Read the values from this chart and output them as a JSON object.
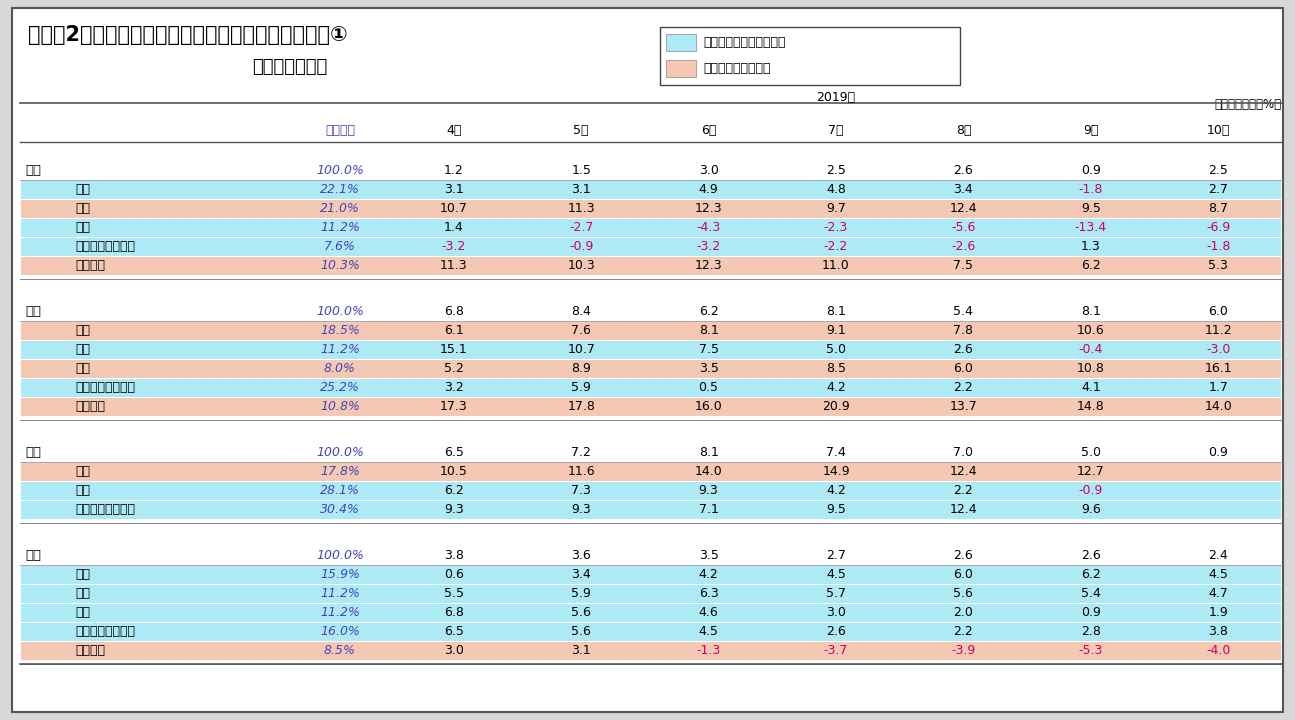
{
  "title": "（図表2）東アジア地域の鉱工業在庫・生産の推移　①",
  "subtitle": "－鉱工業在庫－",
  "note": "（前年同月比、%）",
  "legend": {
    "cyan_label": "在庫調整がほぼ終了局面",
    "pink_label": "在庫調整はこれから"
  },
  "header_year": "2019年",
  "columns": [
    "ウエート",
    "4月",
    "5月",
    "6月",
    "7月",
    "8月",
    "9月",
    "10月"
  ],
  "bg_color": "#d8d8d8",
  "table_bg": "#ffffff",
  "cyan_color": "#aeeaf5",
  "pink_color": "#f5c8b4",
  "sections": [
    {
      "name": "日本",
      "weight": "100.0%",
      "values": [
        "1.2",
        "1.5",
        "3.0",
        "2.5",
        "2.6",
        "0.9",
        "2.5"
      ],
      "neg": [
        false,
        false,
        false,
        false,
        false,
        false,
        false
      ],
      "rows": [
        {
          "name": "金属",
          "weight": "22.1%",
          "values": [
            "3.1",
            "3.1",
            "4.9",
            "4.8",
            "3.4",
            "-1.8",
            "2.7"
          ],
          "neg": [
            false,
            false,
            false,
            false,
            false,
            true,
            false
          ],
          "color": "cyan"
        },
        {
          "name": "化学",
          "weight": "21.0%",
          "values": [
            "10.7",
            "11.3",
            "12.3",
            "9.7",
            "12.4",
            "9.5",
            "8.7"
          ],
          "neg": [
            false,
            false,
            false,
            false,
            false,
            false,
            false
          ],
          "color": "pink"
        },
        {
          "name": "機械",
          "weight": "11.2%",
          "values": [
            "1.4",
            "-2.7",
            "-4.3",
            "-2.3",
            "-5.6",
            "-13.4",
            "-6.9"
          ],
          "neg": [
            false,
            true,
            true,
            true,
            true,
            true,
            true
          ],
          "color": "cyan"
        },
        {
          "name": "エレクトロニクス",
          "weight": "7.6%",
          "values": [
            "-3.2",
            "-0.9",
            "-3.2",
            "-2.2",
            "-2.6",
            "1.3",
            "-1.8"
          ],
          "neg": [
            true,
            true,
            true,
            true,
            true,
            false,
            true
          ],
          "color": "cyan"
        },
        {
          "name": "輸送機器",
          "weight": "10.3%",
          "values": [
            "11.3",
            "10.3",
            "12.3",
            "11.0",
            "7.5",
            "6.2",
            "5.3"
          ],
          "neg": [
            false,
            false,
            false,
            false,
            false,
            false,
            false
          ],
          "color": "pink"
        }
      ]
    },
    {
      "name": "韓国",
      "weight": "100.0%",
      "values": [
        "6.8",
        "8.4",
        "6.2",
        "8.1",
        "5.4",
        "8.1",
        "6.0"
      ],
      "neg": [
        false,
        false,
        false,
        false,
        false,
        false,
        false
      ],
      "rows": [
        {
          "name": "金属",
          "weight": "18.5%",
          "values": [
            "6.1",
            "7.6",
            "8.1",
            "9.1",
            "7.8",
            "10.6",
            "11.2"
          ],
          "neg": [
            false,
            false,
            false,
            false,
            false,
            false,
            false
          ],
          "color": "pink"
        },
        {
          "name": "化学",
          "weight": "11.2%",
          "values": [
            "15.1",
            "10.7",
            "7.5",
            "5.0",
            "2.6",
            "-0.4",
            "-3.0"
          ],
          "neg": [
            false,
            false,
            false,
            false,
            false,
            true,
            true
          ],
          "color": "cyan"
        },
        {
          "name": "機械",
          "weight": "8.0%",
          "values": [
            "5.2",
            "8.9",
            "3.5",
            "8.5",
            "6.0",
            "10.8",
            "16.1"
          ],
          "neg": [
            false,
            false,
            false,
            false,
            false,
            false,
            false
          ],
          "color": "pink"
        },
        {
          "name": "エレクトロニクス",
          "weight": "25.2%",
          "values": [
            "3.2",
            "5.9",
            "0.5",
            "4.2",
            "2.2",
            "4.1",
            "1.7"
          ],
          "neg": [
            false,
            false,
            false,
            false,
            false,
            false,
            false
          ],
          "color": "cyan"
        },
        {
          "name": "輸送機器",
          "weight": "10.8%",
          "values": [
            "17.3",
            "17.8",
            "16.0",
            "20.9",
            "13.7",
            "14.8",
            "14.0"
          ],
          "neg": [
            false,
            false,
            false,
            false,
            false,
            false,
            false
          ],
          "color": "pink"
        }
      ]
    },
    {
      "name": "台湾",
      "weight": "100.0%",
      "values": [
        "6.5",
        "7.2",
        "8.1",
        "7.4",
        "7.0",
        "5.0",
        "0.9"
      ],
      "neg": [
        false,
        false,
        false,
        false,
        false,
        false,
        false
      ],
      "rows": [
        {
          "name": "金属",
          "weight": "17.8%",
          "values": [
            "10.5",
            "11.6",
            "14.0",
            "14.9",
            "12.4",
            "12.7",
            ""
          ],
          "neg": [
            false,
            false,
            false,
            false,
            false,
            false,
            false
          ],
          "color": "pink"
        },
        {
          "name": "化学",
          "weight": "28.1%",
          "values": [
            "6.2",
            "7.3",
            "9.3",
            "4.2",
            "2.2",
            "-0.9",
            ""
          ],
          "neg": [
            false,
            false,
            false,
            false,
            false,
            true,
            false
          ],
          "color": "cyan"
        },
        {
          "name": "エレクトロニクス",
          "weight": "30.4%",
          "values": [
            "9.3",
            "9.3",
            "7.1",
            "9.5",
            "12.4",
            "9.6",
            ""
          ],
          "neg": [
            false,
            false,
            false,
            false,
            false,
            false,
            false
          ],
          "color": "cyan"
        }
      ]
    },
    {
      "name": "中国",
      "weight": "100.0%",
      "values": [
        "3.8",
        "3.6",
        "3.5",
        "2.7",
        "2.6",
        "2.6",
        "2.4"
      ],
      "neg": [
        false,
        false,
        false,
        false,
        false,
        false,
        false
      ],
      "rows": [
        {
          "name": "金属",
          "weight": "15.9%",
          "values": [
            "0.6",
            "3.4",
            "4.2",
            "4.5",
            "6.0",
            "6.2",
            "4.5"
          ],
          "neg": [
            false,
            false,
            false,
            false,
            false,
            false,
            false
          ],
          "color": "cyan"
        },
        {
          "name": "化学",
          "weight": "11.2%",
          "values": [
            "5.5",
            "5.9",
            "6.3",
            "5.7",
            "5.6",
            "5.4",
            "4.7"
          ],
          "neg": [
            false,
            false,
            false,
            false,
            false,
            false,
            false
          ],
          "color": "cyan"
        },
        {
          "name": "機械",
          "weight": "11.2%",
          "values": [
            "6.8",
            "5.6",
            "4.6",
            "3.0",
            "2.0",
            "0.9",
            "1.9"
          ],
          "neg": [
            false,
            false,
            false,
            false,
            false,
            false,
            false
          ],
          "color": "cyan"
        },
        {
          "name": "エレクトロニクス",
          "weight": "16.0%",
          "values": [
            "6.5",
            "5.6",
            "4.5",
            "2.6",
            "2.2",
            "2.8",
            "3.8"
          ],
          "neg": [
            false,
            false,
            false,
            false,
            false,
            false,
            false
          ],
          "color": "cyan"
        },
        {
          "name": "輸送機器",
          "weight": "8.5%",
          "values": [
            "3.0",
            "3.1",
            "-1.3",
            "-3.7",
            "-3.9",
            "-5.3",
            "-4.0"
          ],
          "neg": [
            false,
            false,
            true,
            true,
            true,
            true,
            true
          ],
          "color": "pink"
        }
      ]
    }
  ]
}
